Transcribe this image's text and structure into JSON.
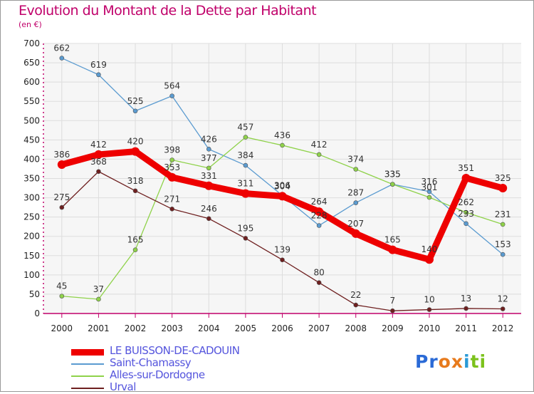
{
  "title": "Evolution du Montant de la Dette par Habitant",
  "unit": "(en €)",
  "brand": {
    "text": "Proxiti",
    "letters": [
      "P",
      "r",
      "o",
      "x",
      "i",
      "t",
      "i"
    ],
    "colors": [
      "#2a6ad6",
      "#2a6ad6",
      "#e77a1c",
      "#e77a1c",
      "#2a9ad6",
      "#7cc21c",
      "#7cc21c"
    ]
  },
  "chart_data": {
    "type": "line",
    "x": [
      "2000",
      "2001",
      "2002",
      "2003",
      "2004",
      "2005",
      "2006",
      "2007",
      "2008",
      "2009",
      "2010",
      "2011",
      "2012"
    ],
    "ylim": [
      0,
      700
    ],
    "yticks": [
      "0",
      "50",
      "100",
      "150",
      "200",
      "250",
      "300",
      "350",
      "400",
      "450",
      "500",
      "550",
      "600",
      "650",
      "700"
    ],
    "grid": true,
    "legend_position": "bottom-left",
    "series": [
      {
        "name": "Saint-Chamassy",
        "color": "#5b9bd0",
        "values": [
          662,
          619,
          525,
          564,
          426,
          384,
          306,
          228,
          287,
          335,
          316,
          233,
          153
        ]
      },
      {
        "name": "Alles-sur-Dordogne",
        "color": "#8fd24a",
        "values": [
          45,
          37,
          165,
          398,
          377,
          457,
          436,
          412,
          374,
          335,
          301,
          262,
          231
        ]
      },
      {
        "name": "Urval",
        "color": "#6e1f1f",
        "values": [
          275,
          368,
          318,
          271,
          246,
          195,
          139,
          80,
          22,
          7,
          10,
          13,
          12
        ]
      },
      {
        "name": "LE BUISSON-DE-CADOUIN",
        "color": "#ee0000",
        "values": [
          386,
          412,
          420,
          353,
          331,
          311,
          304,
          264,
          207,
          165,
          140,
          351,
          325
        ]
      }
    ],
    "legend": [
      "LE BUISSON-DE-CADOUIN",
      "Saint-Chamassy",
      "Alles-sur-Dordogne",
      "Urval"
    ]
  }
}
